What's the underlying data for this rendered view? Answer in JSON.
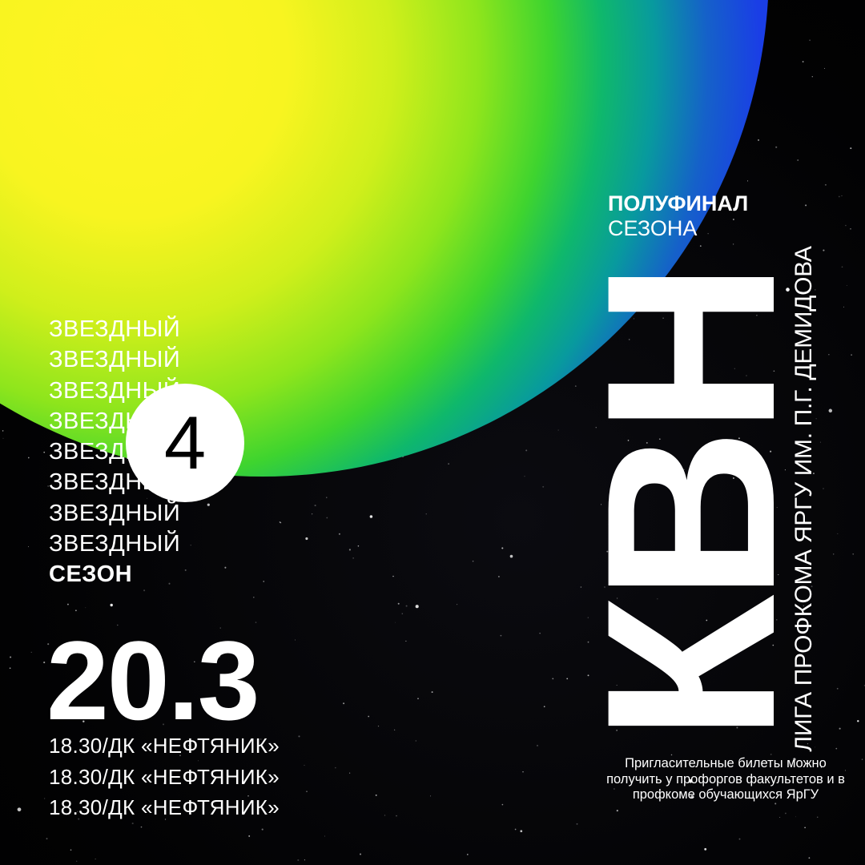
{
  "background": {
    "space": "#000000",
    "planet_inner": "#fff323",
    "planet_outer": "#1a3ee6"
  },
  "season": {
    "lines": [
      "ЗВЕЗДНЫЙ",
      "ЗВЕЗДНЫЙ",
      "ЗВЕЗДНЫЙ",
      "ЗВЕЗДНЫЙ",
      "ЗВЕЗДНЫЙ",
      "ЗВЕЗДНЫЙ",
      "ЗВЕЗДНЫЙ",
      "ЗВЕЗДНЫЙ"
    ],
    "label": "СЕЗОН",
    "number": "4"
  },
  "event": {
    "date": "20.3",
    "venue_lines": [
      "18.30/ДК «НЕФТЯНИК»",
      "18.30/ДК «НЕФТЯНИК»",
      "18.30/ДК «НЕФТЯНИК»"
    ]
  },
  "header": {
    "stage": "ПОЛУФИНАЛ",
    "stage_sub": "СЕЗОНА"
  },
  "brand": {
    "title": "КВН",
    "league": "ЛИГА ПРОФКОМА ЯРГУ ИМ. П.Г. ДЕМИДОВА"
  },
  "info": {
    "tickets_text": "Пригласительные билеты можно получить у профоргов факультетов и в профкоме обучающихся ЯрГУ"
  }
}
